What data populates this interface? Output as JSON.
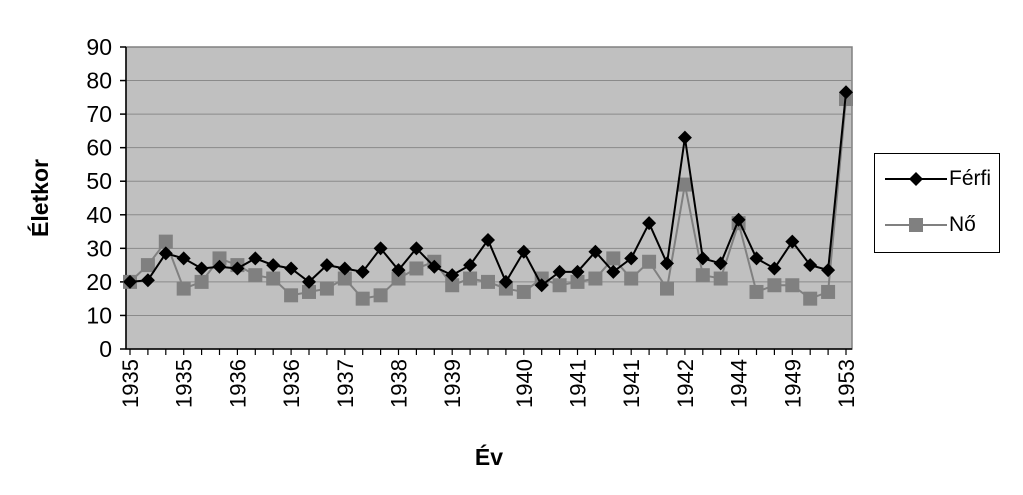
{
  "chart_data": {
    "type": "line",
    "title": "",
    "xlabel": "Év",
    "ylabel": "Életkor",
    "ylim": [
      0,
      90
    ],
    "yticks": [
      0,
      10,
      20,
      30,
      40,
      50,
      60,
      70,
      80,
      90
    ],
    "x_tick_labels": [
      "1935",
      "1935",
      "1936",
      "1936",
      "1937",
      "1938",
      "1939",
      "1940",
      "1941",
      "1941",
      "1942",
      "1944",
      "1949",
      "1953"
    ],
    "grid": true,
    "legend_position": "right",
    "plot_background": "#c0c0c0",
    "series": [
      {
        "name": "Férfi",
        "color": "#000000",
        "marker": "diamond",
        "values": [
          20,
          20.5,
          28.5,
          27,
          24,
          24.5,
          24,
          27,
          25,
          24,
          20,
          25,
          24,
          23,
          30,
          23.5,
          30,
          24.5,
          22,
          25,
          32.5,
          20,
          29,
          19,
          23,
          23,
          29,
          23,
          27,
          37.5,
          25.5,
          63,
          27,
          25.5,
          38.5,
          27,
          24,
          32,
          25,
          23.5,
          76.5
        ]
      },
      {
        "name": "Nő",
        "color": "#808080",
        "marker": "square",
        "values": [
          20,
          25,
          32,
          18,
          20,
          27,
          25,
          22,
          21,
          16,
          17,
          18,
          21,
          15,
          16,
          21,
          24,
          26,
          19,
          21,
          20,
          18,
          17,
          21,
          19,
          20,
          21,
          27,
          21,
          26,
          18,
          49,
          22,
          21,
          37.5,
          17,
          19,
          19,
          15,
          17,
          74.5
        ]
      }
    ]
  }
}
